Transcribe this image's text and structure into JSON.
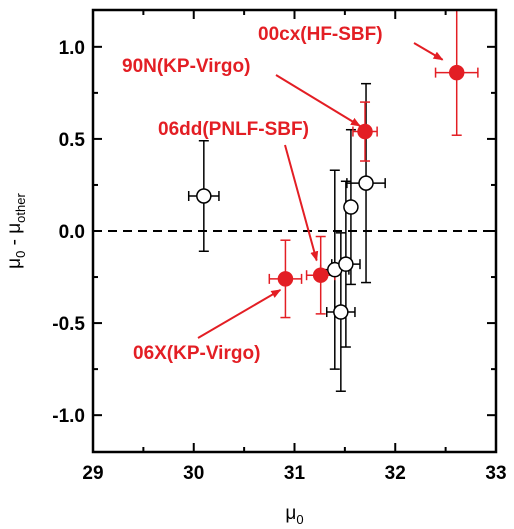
{
  "chart_data": {
    "type": "scatter",
    "xlabel": "μ",
    "xlabel_sub": "0",
    "ylabel": "μ",
    "ylabel_sub": "0",
    "ylabel_mid": " - μ",
    "ylabel_sub2": "other",
    "xlim": [
      29,
      33
    ],
    "ylim": [
      -1.2,
      1.2
    ],
    "x_ticks": [
      29,
      30,
      31,
      32,
      33
    ],
    "y_ticks": [
      1.0,
      0.5,
      0.0,
      -0.5,
      -1.0
    ],
    "x_tick_labels": [
      "29",
      "30",
      "31",
      "32",
      "33"
    ],
    "y_tick_labels": [
      "1.0",
      "0.5",
      "0.0",
      "-0.5",
      "-1.0"
    ],
    "reference_line": {
      "y": 0.0,
      "style": "dashed"
    },
    "series": [
      {
        "marker": "open-circle",
        "color": "#000000",
        "points": [
          {
            "x": 30.1,
            "y": 0.19,
            "xerr": 0.15,
            "yerr": 0.3
          },
          {
            "x": 31.4,
            "y": -0.21,
            "xerr": 0.14,
            "yerr": 0.54
          },
          {
            "x": 31.46,
            "y": -0.44,
            "xerr": 0.14,
            "yerr": 0.43
          },
          {
            "x": 31.51,
            "y": -0.18,
            "xerr": 0.14,
            "yerr": 0.45
          },
          {
            "x": 31.56,
            "y": 0.13,
            "xerr": 0.05,
            "yerr": 0.42
          },
          {
            "x": 31.71,
            "y": 0.26,
            "xerr": 0.19,
            "yerr": 0.54
          }
        ]
      },
      {
        "marker": "filled-circle",
        "color": "#e31e24",
        "points": [
          {
            "x": 30.91,
            "y": -0.26,
            "xerr": 0.16,
            "yerr": 0.21
          },
          {
            "x": 31.26,
            "y": -0.24,
            "xerr": 0.14,
            "yerr": 0.21
          },
          {
            "x": 31.7,
            "y": 0.54,
            "xerr": 0.12,
            "yerr": 0.16
          },
          {
            "x": 32.61,
            "y": 0.86,
            "xerr": 0.21,
            "yerr": 0.34
          }
        ]
      }
    ],
    "annotations": [
      {
        "text": "00cx(HF-SBF)",
        "color": "#e31e24",
        "arrow_to": [
          32.47,
          0.93
        ]
      },
      {
        "text": "90N(KP-Virgo)",
        "color": "#e31e24",
        "arrow_to": [
          31.65,
          0.57
        ]
      },
      {
        "text": "06dd(PNLF-SBF)",
        "color": "#e31e24",
        "arrow_to": [
          31.22,
          -0.16
        ]
      },
      {
        "text": "06X(KP-Virgo)",
        "color": "#e31e24",
        "arrow_to": [
          30.86,
          -0.32
        ]
      }
    ],
    "grid": false,
    "legend": "none"
  }
}
